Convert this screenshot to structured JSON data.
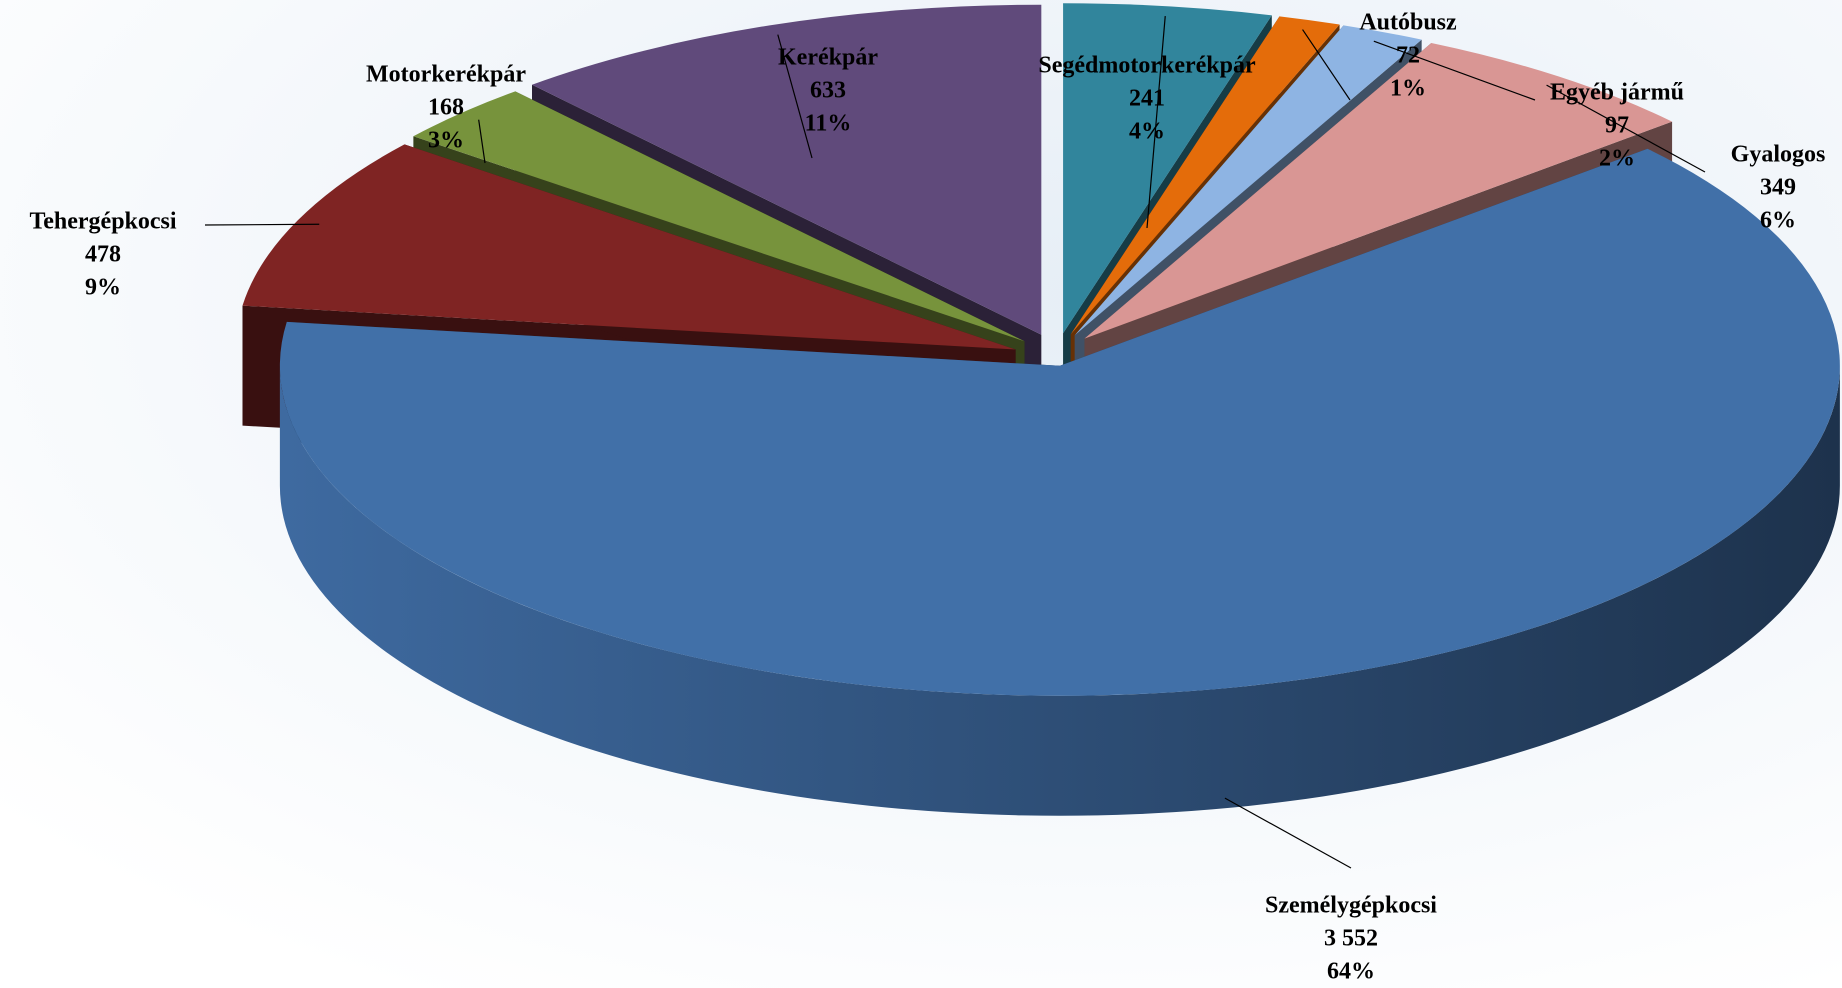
{
  "chart_data": {
    "type": "pie3d",
    "categories": [
      "Segédmotorkerékpár",
      "Autóbusz",
      "Egyéb jármű",
      "Gyalogos",
      "Személygépkocsi",
      "Tehergépkocsi",
      "Motorkerékpár",
      "Kerékpár"
    ],
    "values": [
      241,
      72,
      97,
      349,
      3552,
      478,
      168,
      633
    ],
    "value_labels": [
      "241",
      "72",
      "97",
      "349",
      "3 552",
      "478",
      "168",
      "633"
    ],
    "percent_labels": [
      "4%",
      "1%",
      "2%",
      "6%",
      "64%",
      "9%",
      "3%",
      "11%"
    ],
    "colors": [
      "#31859c",
      "#e46c0a",
      "#8eb4e3",
      "#d99694",
      "#4170a8",
      "#7f2423",
      "#77933c",
      "#604a7b"
    ]
  }
}
